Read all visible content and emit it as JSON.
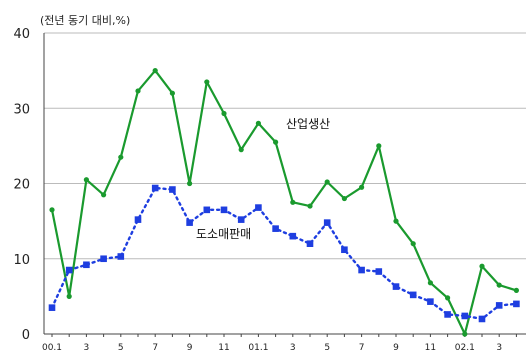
{
  "chart_data": {
    "type": "line",
    "unit_label": "(전년 동기 대비,%)",
    "ylim": [
      0,
      40
    ],
    "yticks": [
      "0",
      "10",
      "20",
      "30",
      "40"
    ],
    "x_tick_labels": [
      "00.1",
      "3",
      "5",
      "7",
      "9",
      "11",
      "01.1",
      "3",
      "5",
      "7",
      "9",
      "11",
      "02.1",
      "3"
    ],
    "series": [
      {
        "name": "산업생산",
        "color": "#1a9a2e",
        "style": "solid",
        "values": [
          16.5,
          5.0,
          20.5,
          18.5,
          23.5,
          32.3,
          35.0,
          32.0,
          20.0,
          33.5,
          29.3,
          24.5,
          28.0,
          25.5,
          17.5,
          17.0,
          20.2,
          18.0,
          19.5,
          25.0,
          15.0,
          12.0,
          6.8,
          4.8,
          0.0,
          9.0,
          6.5,
          5.8
        ]
      },
      {
        "name": "도소매판매",
        "color": "#1e3ee0",
        "style": "dotted",
        "values": [
          3.5,
          8.5,
          9.2,
          10.0,
          10.3,
          15.2,
          19.4,
          19.2,
          14.8,
          16.5,
          16.5,
          15.2,
          16.8,
          14.0,
          13.0,
          12.0,
          14.8,
          11.2,
          8.5,
          8.3,
          6.3,
          5.2,
          4.3,
          2.6,
          2.4,
          2.0,
          3.8,
          4.0
        ]
      }
    ]
  }
}
